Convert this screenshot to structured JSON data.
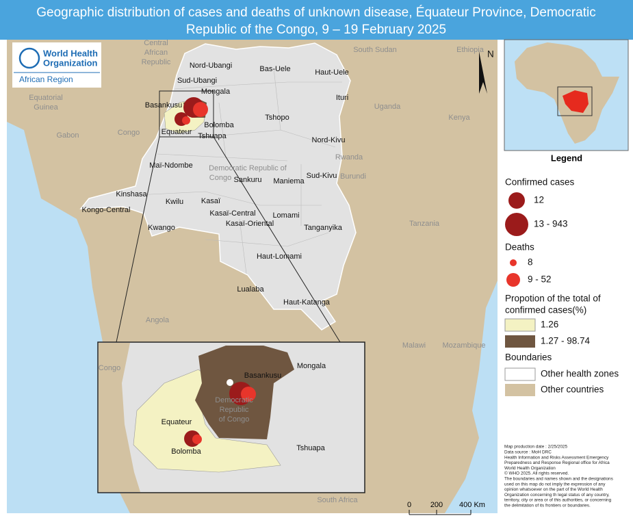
{
  "header": {
    "title": [
      "Geographic distribution of cases and deaths of unknown disease, Équateur Province, Democratic",
      "Republic of the Congo, 9 – 19 February 2025"
    ]
  },
  "logo": {
    "name": [
      "World Health",
      "Organization"
    ],
    "region": "African Region"
  },
  "map": {
    "north": "N",
    "countries": [
      "Central",
      "African",
      "Republic",
      "South Sudan",
      "Ethiopia",
      "Equatorial",
      "Guinea",
      "Gabon",
      "Congo",
      "Uganda",
      "Kenya",
      "Rwanda",
      "Burundi",
      "Tanzania",
      "Angola",
      "Malawi",
      "Mozambique",
      "South Africa",
      "Democratic Republic of",
      "Congo"
    ],
    "provinces": [
      "Nord-Ubangi",
      "Bas-Uele",
      "Haut-Uele",
      "Sud-Ubangi",
      "Mongala",
      "Ituri",
      "Basankusu",
      "Tshopo",
      "Equateur",
      "Bolomba",
      "Tshuapa",
      "Nord-Kivu",
      "Maï-Ndombe",
      "Sankuru",
      "Maniema",
      "Sud-Kivu",
      "Kinshasa",
      "Kwilu",
      "Kasaï",
      "Kongo-Central",
      "Kasaï-Central",
      "Lomami",
      "Kasaï-Oriental",
      "Tanganyika",
      "Kwango",
      "Haut-Lomami",
      "Lualaba",
      "Haut-Katanga"
    ],
    "inset_labels": [
      "Congo",
      "Mongala",
      "Basankusu",
      "Democratic",
      "Republic",
      "of Congo",
      "Equateur",
      "Bolomba",
      "Tshuapa"
    ],
    "scale": [
      "0",
      "200",
      "400 Km"
    ]
  },
  "legend": {
    "title": "Legend",
    "confirmed_cases": {
      "title": "Confirmed cases",
      "items": [
        "12",
        "13 - 943"
      ]
    },
    "deaths": {
      "title": "Deaths",
      "items": [
        "8",
        "9 - 52"
      ]
    },
    "proportion": {
      "title": [
        "Propotion of the total of",
        "confirmed cases(%)"
      ],
      "items": [
        "1.26",
        "1.27 - 98.74"
      ]
    },
    "boundaries": {
      "title": "Boundaries",
      "items": [
        "Other health zones",
        "Other countries"
      ]
    }
  },
  "notes": [
    "Map production date : 2/25/2025",
    "Data source : MoH DRC",
    "Health Information and Risks Assessment Emergency",
    "Preparedness and Response Regional office for Africa",
    "World Health Organization",
    "© WHO 2025. All rights reserved.",
    "The boundaries and names shown and the designations",
    "used on this map do not imply the expression of any",
    "opinion whatsoever on the part of the World Health",
    "Organization concerning th legal status of any country,",
    "territory, city or area or of this authorities, or concerning",
    "the delimitation of its frontiers or boundaries."
  ]
}
